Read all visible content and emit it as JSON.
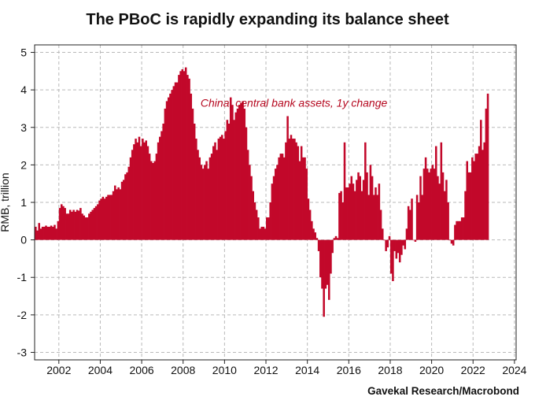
{
  "title": "The PBoC is rapidly expanding its balance sheet",
  "source": "Gavekal Research/Macrobond",
  "colors": {
    "bar": "#c2082a",
    "label": "#b5081f",
    "grid": "#b9b9b9",
    "axis": "#222222"
  },
  "chart_data": {
    "type": "bar",
    "title": "The PBoC is rapidly expanding its balance sheet",
    "ylabel": "RMB, trillion",
    "xlabel": "",
    "ylim": [
      -3.2,
      5.2
    ],
    "xlim": [
      2000.83,
      2024.08
    ],
    "yticks": [
      5,
      4,
      3,
      2,
      1,
      0,
      -1,
      -2,
      -3
    ],
    "xticks": [
      "2002",
      "2004",
      "2006",
      "2008",
      "2010",
      "2012",
      "2014",
      "2016",
      "2018",
      "2020",
      "2022",
      "2024"
    ],
    "grid": true,
    "series": [
      {
        "name": "China, central bank assets, 1y change",
        "frequency": "monthly",
        "start": "2000-11",
        "values": [
          0.35,
          0.25,
          0.45,
          0.3,
          0.35,
          0.35,
          0.38,
          0.35,
          0.35,
          0.38,
          0.35,
          0.4,
          0.3,
          0.5,
          0.85,
          0.95,
          0.9,
          0.85,
          0.7,
          0.7,
          0.8,
          0.75,
          0.8,
          0.75,
          0.8,
          0.78,
          0.85,
          0.7,
          0.65,
          0.6,
          0.6,
          0.7,
          0.75,
          0.8,
          0.85,
          0.9,
          0.95,
          1.05,
          1.1,
          1.15,
          1.1,
          1.15,
          1.2,
          1.2,
          1.2,
          1.3,
          1.45,
          1.35,
          1.4,
          1.35,
          1.55,
          1.6,
          1.75,
          1.8,
          1.95,
          2.2,
          2.4,
          2.55,
          2.7,
          2.6,
          2.75,
          2.5,
          2.7,
          2.6,
          2.65,
          2.5,
          2.3,
          2.1,
          2.05,
          2.1,
          2.3,
          2.6,
          2.75,
          2.9,
          3.1,
          3.5,
          3.7,
          3.8,
          3.9,
          4.0,
          4.1,
          4.2,
          4.2,
          4.4,
          4.5,
          4.55,
          4.5,
          4.6,
          4.4,
          4.3,
          3.9,
          3.5,
          3.1,
          2.7,
          2.4,
          2.2,
          2.0,
          1.9,
          2.0,
          2.1,
          1.9,
          2.2,
          2.3,
          2.5,
          2.6,
          2.4,
          2.7,
          2.75,
          2.8,
          2.7,
          2.9,
          3.2,
          3.1,
          3.8,
          3.6,
          3.2,
          3.4,
          3.5,
          3.6,
          3.65,
          3.7,
          3.5,
          3.0,
          2.4,
          2.0,
          1.7,
          1.3,
          1.0,
          0.8,
          0.6,
          0.3,
          0.35,
          0.35,
          0.3,
          0.6,
          0.6,
          1.0,
          1.5,
          1.7,
          1.9,
          2.0,
          2.2,
          2.3,
          2.3,
          2.2,
          2.6,
          3.3,
          2.7,
          2.8,
          2.7,
          2.7,
          2.6,
          2.5,
          2.1,
          2.5,
          2.2,
          2.2,
          1.9,
          1.1,
          0.8,
          0.5,
          0.3,
          0.2,
          0.05,
          -0.3,
          -1.0,
          -1.3,
          -2.05,
          -1.3,
          -1.2,
          -1.6,
          -0.9,
          -0.35,
          0.05,
          0.1,
          0.05,
          1.25,
          1.3,
          1.0,
          2.6,
          1.4,
          1.4,
          1.5,
          1.7,
          1.5,
          1.3,
          1.6,
          1.8,
          1.7,
          1.3,
          1.6,
          2.6,
          1.8,
          1.2,
          2.0,
          1.7,
          1.2,
          1.4,
          1.2,
          1.5,
          0.8,
          0.3,
          0.0,
          -0.3,
          -0.2,
          0.1,
          -0.9,
          -1.1,
          -0.3,
          -0.5,
          -0.35,
          -0.6,
          -0.4,
          -0.15,
          -0.25,
          0.3,
          0.9,
          0.8,
          1.1,
          0.0,
          -0.05,
          1.2,
          1.0,
          1.7,
          1.2,
          1.9,
          2.2,
          1.9,
          1.8,
          1.9,
          2.0,
          1.9,
          2.5,
          1.7,
          1.5,
          2.6,
          1.8,
          1.3,
          1.6,
          1.0,
          0.0,
          -0.1,
          -0.15,
          0.4,
          0.5,
          0.5,
          0.5,
          0.6,
          0.6,
          1.3,
          2.1,
          1.8,
          1.8,
          2.2,
          2.1,
          2.3,
          2.3,
          2.5,
          3.2,
          2.4,
          2.6,
          3.5,
          3.9
        ]
      }
    ],
    "annotations": [
      {
        "text": "China, central bank assets, 1y change",
        "color": "#b5081f",
        "style": "italic",
        "at_x": 2013.35,
        "at_y": 3.55
      }
    ]
  }
}
